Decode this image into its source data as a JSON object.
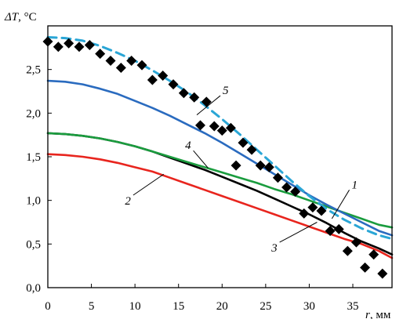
{
  "chart_data": {
    "type": "line",
    "title": "",
    "ylabel": "ΔT, °C",
    "ylabel_var": "ΔT",
    "ylabel_unit": ", °C",
    "xlabel": "r, мм",
    "xlabel_var": "r",
    "xlabel_unit": ", мм",
    "xlim": [
      0,
      39.5
    ],
    "ylim": [
      0,
      3.0
    ],
    "xticks": [
      0,
      5,
      10,
      15,
      20,
      25,
      30,
      35
    ],
    "xtick_labels": [
      "0",
      "5",
      "10",
      "15",
      "20",
      "25",
      "30",
      "35"
    ],
    "yticks": [
      0,
      0.5,
      1.0,
      1.5,
      2.0,
      2.5
    ],
    "ytick_labels": [
      "0,0",
      "0,5",
      "1,0",
      "1,5",
      "2,0",
      "2,5"
    ],
    "grid": false,
    "legend": "none",
    "series": [
      {
        "name": "1",
        "color": "#000000",
        "style": "solid",
        "x": [
          0,
          2,
          4,
          6,
          8,
          10,
          12,
          14,
          16,
          18,
          20,
          22,
          24,
          26,
          28,
          30,
          32,
          34,
          36,
          38,
          39.5
        ],
        "y": [
          1.77,
          1.76,
          1.74,
          1.71,
          1.67,
          1.62,
          1.56,
          1.49,
          1.42,
          1.35,
          1.27,
          1.19,
          1.11,
          1.02,
          0.93,
          0.84,
          0.74,
          0.63,
          0.53,
          0.45,
          0.38
        ]
      },
      {
        "name": "2",
        "color": "#e8251e",
        "style": "solid",
        "x": [
          0,
          2,
          4,
          6,
          8,
          10,
          12,
          14,
          16,
          18,
          20,
          22,
          24,
          26,
          28,
          30,
          32,
          34,
          36,
          38,
          39.5
        ],
        "y": [
          1.53,
          1.52,
          1.5,
          1.47,
          1.43,
          1.38,
          1.33,
          1.26,
          1.19,
          1.12,
          1.05,
          0.98,
          0.91,
          0.84,
          0.77,
          0.7,
          0.63,
          0.56,
          0.5,
          0.42,
          0.34
        ]
      },
      {
        "name": "3",
        "color": "#1d1d1d",
        "style": "solid",
        "x": [],
        "y": []
      },
      {
        "name": "4",
        "color": "#1a9c3e",
        "style": "solid",
        "x": [
          0,
          2,
          4,
          6,
          8,
          10,
          12,
          14,
          16,
          18,
          20,
          22,
          24,
          26,
          28,
          30,
          32,
          34,
          36,
          38,
          39.5
        ],
        "y": [
          1.77,
          1.76,
          1.74,
          1.71,
          1.67,
          1.62,
          1.56,
          1.5,
          1.44,
          1.38,
          1.32,
          1.26,
          1.2,
          1.13,
          1.07,
          1.0,
          0.93,
          0.86,
          0.79,
          0.72,
          0.69
        ]
      },
      {
        "name": "5",
        "color": "#2a6bbf",
        "style": "solid",
        "x": [
          0,
          2,
          4,
          6,
          8,
          10,
          12,
          14,
          16,
          18,
          20,
          22,
          24,
          26,
          28,
          30,
          32,
          34,
          36,
          38,
          39.5
        ],
        "y": [
          2.37,
          2.36,
          2.33,
          2.28,
          2.22,
          2.14,
          2.06,
          1.97,
          1.87,
          1.77,
          1.66,
          1.54,
          1.42,
          1.3,
          1.18,
          1.06,
          0.95,
          0.85,
          0.75,
          0.65,
          0.6
        ]
      },
      {
        "name": "",
        "color": "#2aa6d6",
        "style": "dashed",
        "x": [
          0,
          2,
          4,
          6,
          8,
          10,
          12,
          14,
          16,
          18,
          20,
          22,
          24,
          26,
          28,
          30,
          32,
          34,
          36,
          38,
          39.5
        ],
        "y": [
          2.87,
          2.86,
          2.83,
          2.77,
          2.69,
          2.6,
          2.49,
          2.37,
          2.24,
          2.09,
          1.93,
          1.76,
          1.58,
          1.4,
          1.22,
          1.05,
          0.9,
          0.78,
          0.68,
          0.6,
          0.56
        ]
      },
      {
        "name": "",
        "color": "#000000",
        "style": "markers",
        "marker": "diamond",
        "x": [
          0,
          1.2,
          2.4,
          3.6,
          4.8,
          6.0,
          7.2,
          8.4,
          9.6,
          10.8,
          12.0,
          13.2,
          14.4,
          15.6,
          16.8,
          17.5,
          18.2,
          19.1,
          20.0,
          21.0,
          21.6,
          22.4,
          23.4,
          24.4,
          25.4,
          26.4,
          27.4,
          28.4,
          29.4,
          30.4,
          31.4,
          32.4,
          33.4,
          34.4,
          35.4,
          36.4,
          37.4,
          38.4
        ],
        "y": [
          2.82,
          2.76,
          2.8,
          2.76,
          2.78,
          2.68,
          2.6,
          2.52,
          2.6,
          2.55,
          2.38,
          2.43,
          2.33,
          2.23,
          2.18,
          1.86,
          2.13,
          1.85,
          1.8,
          1.83,
          1.4,
          1.66,
          1.58,
          1.4,
          1.38,
          1.26,
          1.15,
          1.1,
          0.85,
          0.92,
          0.88,
          0.65,
          0.67,
          0.42,
          0.52,
          0.23,
          0.38,
          0.16
        ]
      }
    ],
    "annotations": [
      {
        "series": "1",
        "text": "1",
        "x": 32.6,
        "y": 0.79,
        "lx": 34.6,
        "ly": 1.12
      },
      {
        "series": "2",
        "text": "2",
        "x": 13.3,
        "y": 1.3,
        "lx": 9.8,
        "ly": 1.06
      },
      {
        "series": "3",
        "text": "3",
        "x": 30.9,
        "y": 0.75,
        "lx": 26.6,
        "ly": 0.52
      },
      {
        "series": "4",
        "text": "4",
        "x": 18.4,
        "y": 1.37,
        "lx": 16.7,
        "ly": 1.57
      },
      {
        "series": "5",
        "text": "5",
        "x": 17.1,
        "y": 1.98,
        "lx": 19.8,
        "ly": 2.2
      }
    ]
  }
}
